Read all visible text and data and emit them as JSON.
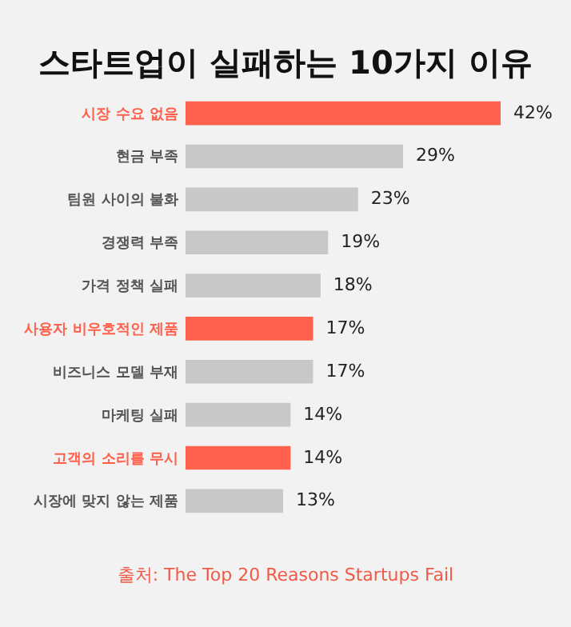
{
  "chart_data": {
    "type": "bar",
    "orientation": "horizontal",
    "title": "스타트업이 실패하는 10가지 이유",
    "categories": [
      "시장 수요 없음",
      "현금 부족",
      "팀원 사이의 불화",
      "경쟁력 부족",
      "가격 정책 실패",
      "사용자 비우호적인 제품",
      "비즈니스 모델 부재",
      "마케팅 실패",
      "고객의 소리를 무시",
      "시장에 맞지 않는 제품"
    ],
    "values": [
      42,
      29,
      23,
      19,
      18,
      17,
      17,
      14,
      14,
      13
    ],
    "value_labels": [
      "42%",
      "29%",
      "23%",
      "19%",
      "18%",
      "17%",
      "17%",
      "14%",
      "14%",
      "13%"
    ],
    "colors": [
      "#ff614c",
      "#c8c8c8",
      "#c8c8c8",
      "#c8c8c8",
      "#c8c8c8",
      "#ff614c",
      "#c8c8c8",
      "#c8c8c8",
      "#ff614c",
      "#c8c8c8"
    ],
    "annotations": [
      "출처: The Top 20 Reasons Startups Fail"
    ]
  }
}
